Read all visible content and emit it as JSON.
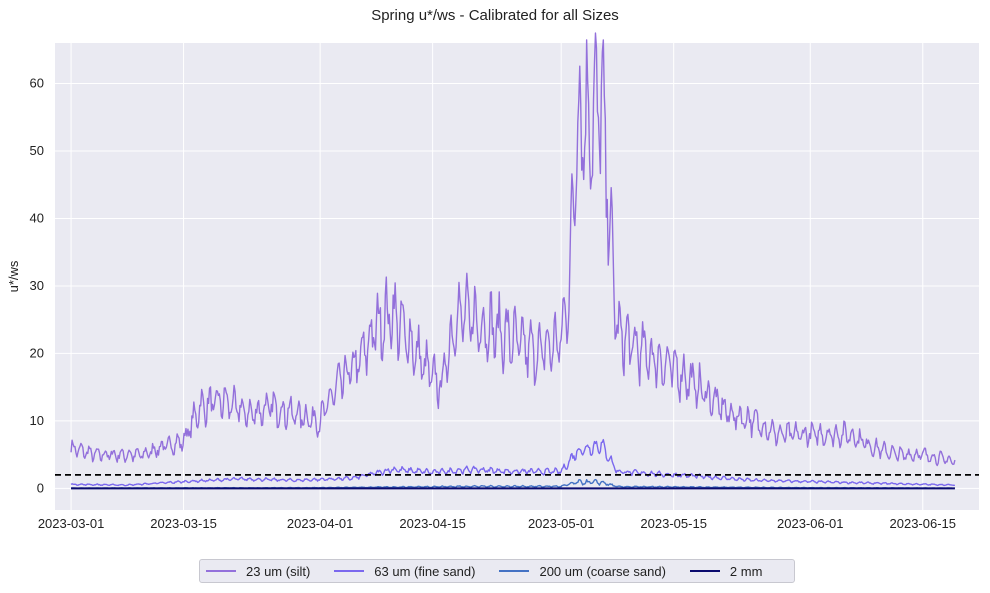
{
  "chart_data": {
    "type": "line",
    "title": "Spring u*/ws - Calibrated for all Sizes",
    "xlabel": "",
    "ylabel": "u*/ws",
    "x_range": [
      "2023-02-27",
      "2023-06-22"
    ],
    "ylim": [
      -3.2,
      66
    ],
    "x_ticks": [
      "2023-03-01",
      "2023-03-15",
      "2023-04-01",
      "2023-04-15",
      "2023-05-01",
      "2023-05-15",
      "2023-06-01",
      "2023-06-15"
    ],
    "y_ticks": [
      0,
      10,
      20,
      30,
      40,
      50,
      60
    ],
    "grid": true,
    "background": "#eaeaf2",
    "legend_position": "bottom-center",
    "threshold": {
      "y": 2,
      "style": "dashed",
      "color": "#000000"
    },
    "series": [
      {
        "name": "23 um (silt)",
        "color": "#9370db",
        "x": [
          "2023-03-01",
          "2023-03-04",
          "2023-03-07",
          "2023-03-10",
          "2023-03-12",
          "2023-03-15",
          "2023-03-17",
          "2023-03-20",
          "2023-03-23",
          "2023-03-26",
          "2023-03-29",
          "2023-04-01",
          "2023-04-03",
          "2023-04-06",
          "2023-04-08",
          "2023-04-10",
          "2023-04-12",
          "2023-04-14",
          "2023-04-16",
          "2023-04-18",
          "2023-04-20",
          "2023-04-22",
          "2023-04-25",
          "2023-04-28",
          "2023-05-01",
          "2023-05-02",
          "2023-05-03",
          "2023-05-05",
          "2023-05-06",
          "2023-05-07",
          "2023-05-08",
          "2023-05-10",
          "2023-05-13",
          "2023-05-16",
          "2023-05-19",
          "2023-05-22",
          "2023-05-25",
          "2023-05-28",
          "2023-05-31",
          "2023-06-03",
          "2023-06-06",
          "2023-06-09",
          "2023-06-12",
          "2023-06-15",
          "2023-06-19"
        ],
        "values": [
          6,
          5,
          5,
          5,
          6,
          7,
          12,
          13,
          11,
          12,
          11,
          10,
          15,
          19,
          24,
          26,
          22,
          18,
          15,
          26,
          25,
          24,
          22,
          20,
          22,
          30,
          55,
          55,
          58,
          40,
          23,
          21,
          19,
          17,
          14,
          11,
          10,
          8,
          8,
          8,
          8,
          6,
          5,
          5,
          4
        ]
      },
      {
        "name": "63 um (fine sand)",
        "color": "#7b68ee",
        "x": [
          "2023-03-01",
          "2023-03-08",
          "2023-03-15",
          "2023-03-22",
          "2023-03-29",
          "2023-04-05",
          "2023-04-10",
          "2023-04-15",
          "2023-04-20",
          "2023-04-25",
          "2023-05-01",
          "2023-05-03",
          "2023-05-06",
          "2023-05-08",
          "2023-05-12",
          "2023-05-18",
          "2023-05-25",
          "2023-06-01",
          "2023-06-08",
          "2023-06-15",
          "2023-06-19"
        ],
        "values": [
          0.6,
          0.5,
          1.0,
          1.4,
          1.2,
          1.5,
          2.8,
          2.4,
          2.8,
          2.5,
          2.5,
          5.5,
          6.5,
          2.5,
          2.2,
          1.8,
          1.2,
          1.0,
          0.8,
          0.6,
          0.5
        ]
      },
      {
        "name": "200 um (coarse sand)",
        "color": "#4472c4",
        "x": [
          "2023-03-01",
          "2023-04-01",
          "2023-04-20",
          "2023-05-01",
          "2023-05-03",
          "2023-05-06",
          "2023-05-08",
          "2023-06-01",
          "2023-06-19"
        ],
        "values": [
          0.05,
          0.1,
          0.3,
          0.3,
          0.9,
          0.9,
          0.25,
          0.1,
          0.05
        ]
      },
      {
        "name": "2 mm",
        "color": "#0b0b6e",
        "x": [
          "2023-03-01",
          "2023-06-19"
        ],
        "values": [
          0.0,
          0.0
        ]
      }
    ]
  }
}
